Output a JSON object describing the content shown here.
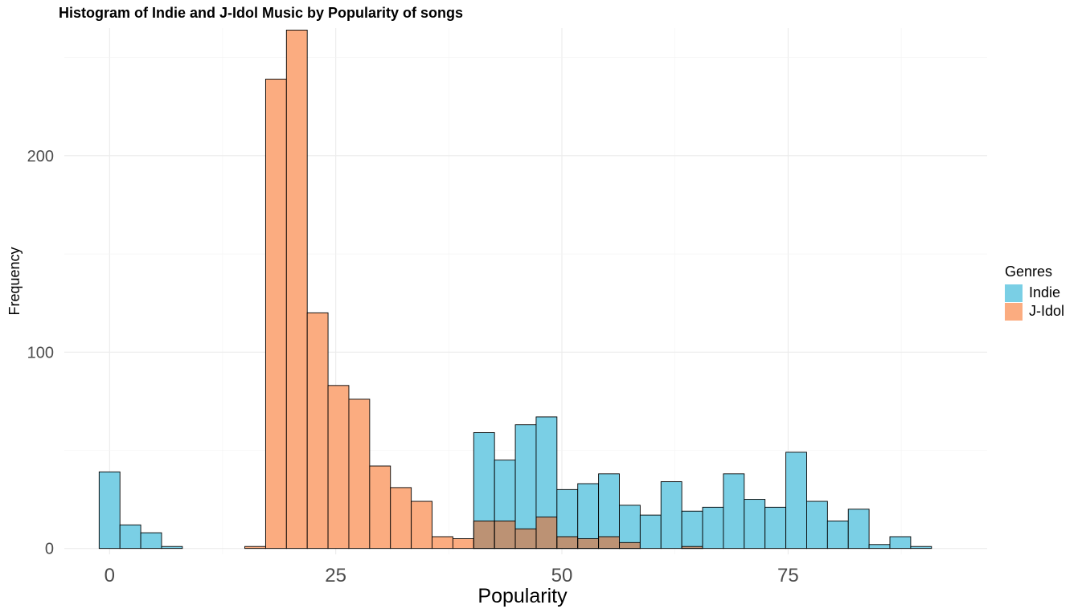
{
  "chart_data": {
    "type": "histogram",
    "title": "Histogram of Indie and J-Idol Music by Popularity of songs",
    "xlabel": "Popularity",
    "ylabel": "Frequency",
    "xlim": [
      -5,
      97
    ],
    "ylim": [
      -3,
      265
    ],
    "x_ticks": [
      0,
      25,
      50,
      75
    ],
    "x_tick_labels": [
      "0",
      "25",
      "50",
      "75"
    ],
    "y_ticks": [
      0,
      100,
      200
    ],
    "y_tick_labels": [
      "0",
      "100",
      "200"
    ],
    "grid": true,
    "legend": {
      "title": "Genres",
      "position": "right",
      "entries": [
        {
          "name": "Indie",
          "color": "#7ACFE5"
        },
        {
          "name": "J-Idol",
          "color": "#FBAC80"
        }
      ]
    },
    "overlap_color": "#BC9274",
    "bin_start": -1.15,
    "bin_width": 2.3,
    "series": [
      {
        "name": "Indie",
        "color": "#7ACFE5",
        "values": [
          39,
          12,
          8,
          1,
          0,
          0,
          0,
          0,
          0,
          0,
          0,
          0,
          0,
          0,
          0,
          0,
          0,
          0,
          59,
          45,
          63,
          67,
          30,
          33,
          38,
          22,
          17,
          34,
          19,
          21,
          38,
          25,
          21,
          49,
          24,
          14,
          20,
          2,
          6,
          1
        ]
      },
      {
        "name": "J-Idol",
        "color": "#FBAC80",
        "values": [
          0,
          0,
          0,
          0,
          0,
          0,
          0,
          1,
          239,
          264,
          120,
          83,
          76,
          42,
          31,
          24,
          6,
          5,
          14,
          14,
          10,
          16,
          6,
          5,
          6,
          3,
          0,
          0,
          1,
          0,
          0,
          0,
          0,
          0,
          0,
          0,
          0,
          0,
          0,
          0
        ]
      }
    ]
  }
}
